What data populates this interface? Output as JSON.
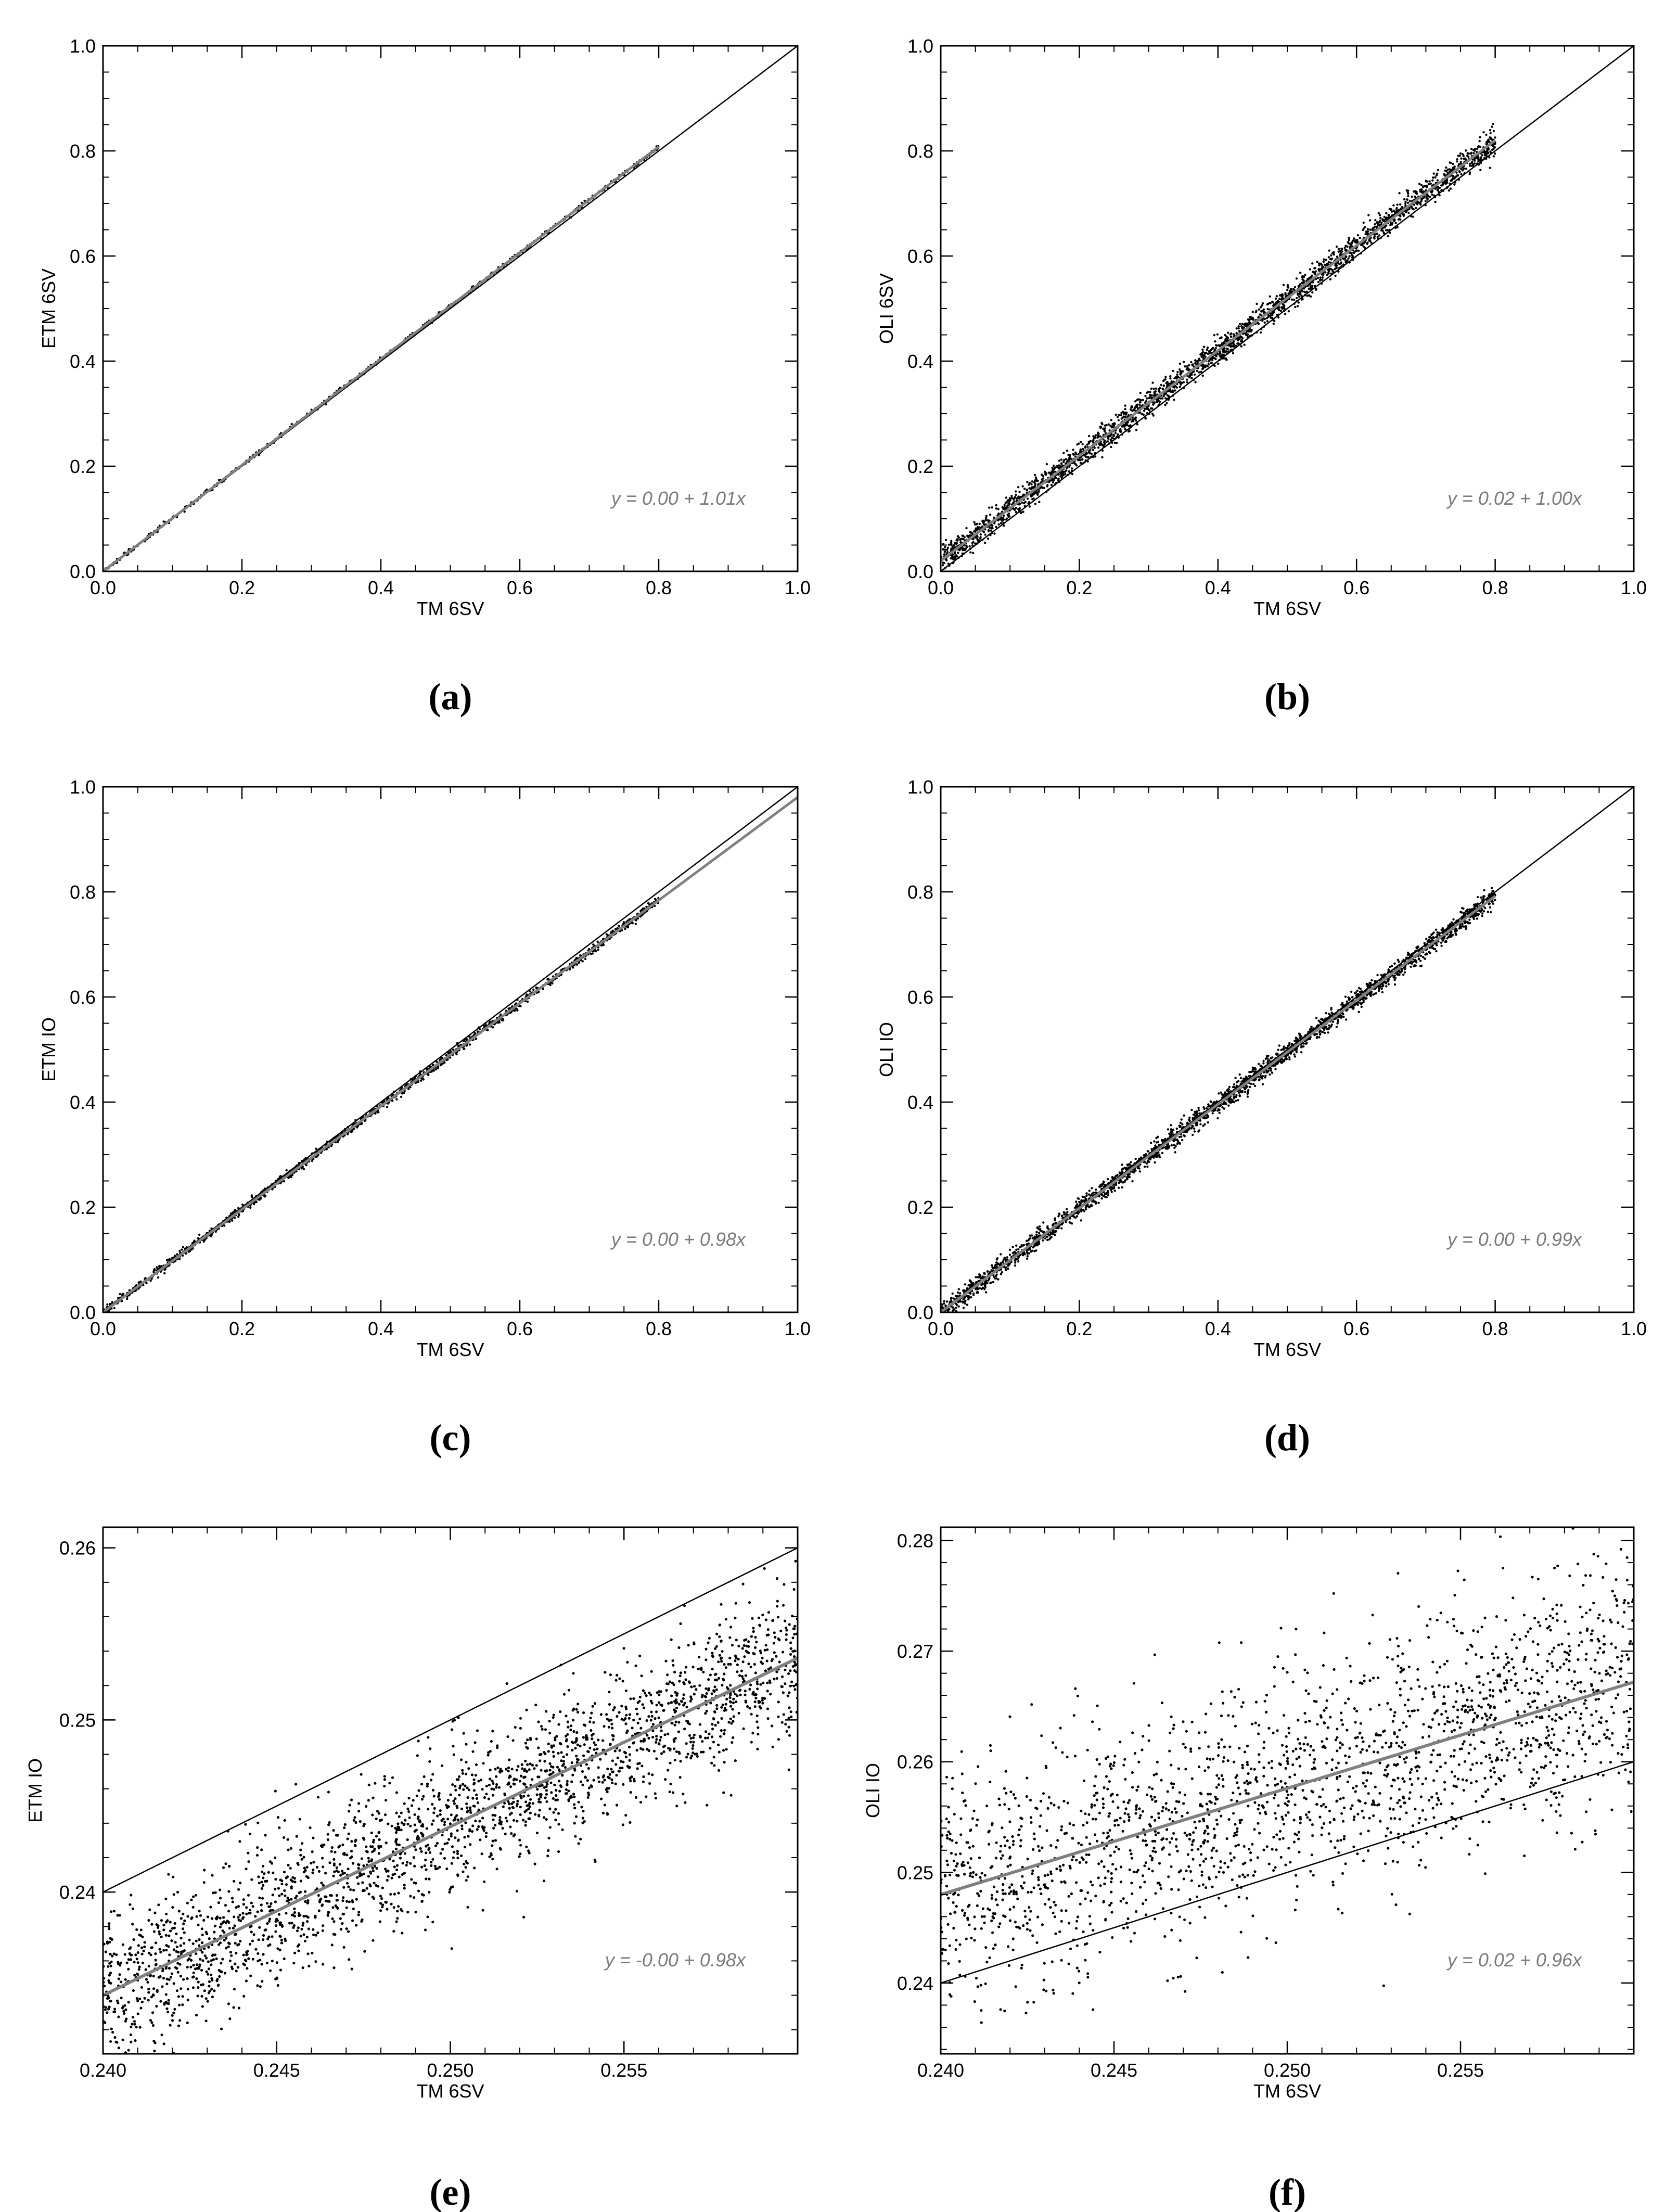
{
  "colors": {
    "background": "#ffffff",
    "axes": "#000000",
    "points": "#000000",
    "fit_line": "#808080",
    "equation_text": "#7a7a7a"
  },
  "chart_data": [
    {
      "panel": "(a)",
      "type": "scatter",
      "xlabel": "TM 6SV",
      "ylabel": "ETM 6SV",
      "xlim": [
        0.0,
        1.0
      ],
      "ylim": [
        0.0,
        1.0
      ],
      "xticks": [
        "0.0",
        "0.2",
        "0.4",
        "0.6",
        "0.8",
        "1.0"
      ],
      "yticks": [
        "0.0",
        "0.2",
        "0.4",
        "0.6",
        "0.8",
        "1.0"
      ],
      "equation": "y = 0.00 + 1.01x",
      "fit": {
        "intercept": 0.0,
        "slope": 1.01
      },
      "reference_line": {
        "intercept": 0,
        "slope": 1
      },
      "points_x_range": [
        0.0,
        0.8
      ],
      "scatter_spread": 0.002,
      "points_count": 600,
      "grid": false,
      "legend": "none"
    },
    {
      "panel": "(b)",
      "type": "scatter",
      "xlabel": "TM 6SV",
      "ylabel": "OLI 6SV",
      "xlim": [
        0.0,
        1.0
      ],
      "ylim": [
        0.0,
        1.0
      ],
      "xticks": [
        "0.0",
        "0.2",
        "0.4",
        "0.6",
        "0.8",
        "1.0"
      ],
      "yticks": [
        "0.0",
        "0.2",
        "0.4",
        "0.6",
        "0.8",
        "1.0"
      ],
      "equation": "y = 0.02 + 1.00x",
      "fit": {
        "intercept": 0.02,
        "slope": 1.0
      },
      "reference_line": {
        "intercept": 0,
        "slope": 1
      },
      "points_x_range": [
        0.0,
        0.8
      ],
      "scatter_spread": 0.012,
      "points_count": 2500,
      "grid": false,
      "legend": "none"
    },
    {
      "panel": "(c)",
      "type": "scatter",
      "xlabel": "TM 6SV",
      "ylabel": "ETM IO",
      "xlim": [
        0.0,
        1.0
      ],
      "ylim": [
        0.0,
        1.0
      ],
      "xticks": [
        "0.0",
        "0.2",
        "0.4",
        "0.6",
        "0.8",
        "1.0"
      ],
      "yticks": [
        "0.0",
        "0.2",
        "0.4",
        "0.6",
        "0.8",
        "1.0"
      ],
      "equation": "y = 0.00 + 0.98x",
      "fit": {
        "intercept": 0.0,
        "slope": 0.98
      },
      "reference_line": {
        "intercept": 0,
        "slope": 1
      },
      "points_x_range": [
        0.0,
        0.8
      ],
      "scatter_spread": 0.004,
      "points_count": 1500,
      "grid": false,
      "legend": "none"
    },
    {
      "panel": "(d)",
      "type": "scatter",
      "xlabel": "TM 6SV",
      "ylabel": "OLI IO",
      "xlim": [
        0.0,
        1.0
      ],
      "ylim": [
        0.0,
        1.0
      ],
      "xticks": [
        "0.0",
        "0.2",
        "0.4",
        "0.6",
        "0.8",
        "1.0"
      ],
      "yticks": [
        "0.0",
        "0.2",
        "0.4",
        "0.6",
        "0.8",
        "1.0"
      ],
      "equation": "y = 0.00 + 0.99x",
      "fit": {
        "intercept": 0.0,
        "slope": 0.99
      },
      "reference_line": {
        "intercept": 0,
        "slope": 1
      },
      "points_x_range": [
        0.0,
        0.8
      ],
      "scatter_spread": 0.009,
      "points_count": 2500,
      "grid": false,
      "legend": "none"
    },
    {
      "panel": "(e)",
      "type": "scatter",
      "xlabel": "TM 6SV",
      "ylabel": "ETM IO",
      "xlim": [
        0.24,
        0.26
      ],
      "ylim": [
        0.2306,
        0.2612
      ],
      "xticks": [
        "0.240",
        "0.245",
        "0.250",
        "0.255"
      ],
      "xtick_values": [
        0.24,
        0.245,
        0.25,
        0.255
      ],
      "yticks": [
        "0.24",
        "0.25",
        "0.26"
      ],
      "ytick_values": [
        0.24,
        0.25,
        0.26
      ],
      "equation": "y = -0.00 + 0.98x",
      "fit": {
        "intercept": -0.0012,
        "slope": 0.98
      },
      "reference_line": {
        "intercept": 0,
        "slope": 1
      },
      "points_x_range": [
        0.24,
        0.26
      ],
      "scatter_spread": 0.0022,
      "points_count": 2400,
      "grid": false,
      "legend": "none"
    },
    {
      "panel": "(f)",
      "type": "scatter",
      "xlabel": "TM 6SV",
      "ylabel": "OLI IO",
      "xlim": [
        0.24,
        0.26
      ],
      "ylim": [
        0.2336,
        0.2812
      ],
      "xticks": [
        "0.240",
        "0.245",
        "0.250",
        "0.255"
      ],
      "xtick_values": [
        0.24,
        0.245,
        0.25,
        0.255
      ],
      "yticks": [
        "0.24",
        "0.25",
        "0.26",
        "0.27",
        "0.28"
      ],
      "ytick_values": [
        0.24,
        0.25,
        0.26,
        0.27,
        0.28
      ],
      "equation": "y = 0.02 + 0.96x",
      "fit": {
        "intercept": 0.0176,
        "slope": 0.96
      },
      "reference_line": {
        "intercept": 0,
        "slope": 1
      },
      "points_x_range": [
        0.24,
        0.26
      ],
      "scatter_spread": 0.0055,
      "points_count": 2000,
      "grid": false,
      "legend": "none"
    }
  ]
}
